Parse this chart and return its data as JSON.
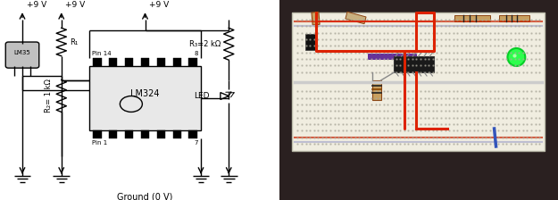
{
  "bg_color": "#ffffff",
  "line_color": "#000000",
  "line_width": 1.0,
  "font_size": 6.5,
  "figsize": [
    6.25,
    2.24
  ],
  "dpi": 100,
  "circuit": {
    "vcc1": "+9 V",
    "vcc2": "+9 V",
    "vcc3": "+9 V",
    "gnd_label": "Ground (0 V)",
    "r1_label": "R₁",
    "r2_label": "R₂= 1 kΩ",
    "r3_label": "R₃=2 kΩ",
    "ic_label": "LM324",
    "sensor_label": "LM35",
    "led_label": "LED",
    "pin14_label": "Pin 14",
    "pin1_label": "Pin 1",
    "pin8_label": "8",
    "pin7_label": "7"
  },
  "photo": {
    "bg_dark": "#2a2020",
    "bb_color": "#f0ede0",
    "bb_border": "#cccccc",
    "rail_red": "#cc2200",
    "rail_blue": "#3355cc",
    "wire_red": "#dd2200",
    "wire_blue": "#3355bb",
    "ic_color": "#1a1a1a",
    "led_color": "#22ff44",
    "led_edge": "#00cc22",
    "resistor_body": "#c8a060",
    "transistor_color": "#111111",
    "bb_hole": "#c8c5b8",
    "bb_dot": "#aaa89a"
  }
}
